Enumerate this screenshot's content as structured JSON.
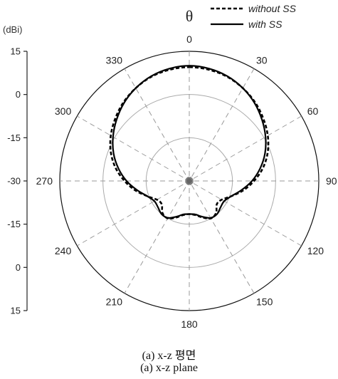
{
  "chart_data": {
    "type": "polar-line",
    "theta_symbol": "θ",
    "r_unit_label": "(dBi)",
    "r_tick_labels": [
      "15",
      "0",
      "-15",
      "-30",
      "-15",
      "0",
      "15"
    ],
    "r_range_dbi": [
      -30,
      15
    ],
    "r_ticks_dbi": [
      -15,
      0,
      15
    ],
    "angle_labels": [
      "0",
      "30",
      "60",
      "90",
      "120",
      "150",
      "180",
      "210",
      "240",
      "270",
      "300",
      "330"
    ],
    "angle_step_deg": 30,
    "grid": true,
    "legend_position": "top-right",
    "series": [
      {
        "name": "without SS",
        "style": "dashed",
        "color": "#000000",
        "angles_deg": [
          0,
          10,
          20,
          30,
          40,
          50,
          60,
          70,
          80,
          90,
          100,
          110,
          120,
          130,
          140,
          150,
          160,
          170,
          180,
          190,
          200,
          210,
          220,
          230,
          240,
          250,
          260,
          270,
          280,
          290,
          300,
          310,
          320,
          330,
          340,
          350
        ],
        "gain_dbi": [
          9.5,
          9.2,
          8.5,
          7.2,
          5.6,
          3.6,
          1.5,
          -1.0,
          -4.0,
          -7.5,
          -11.0,
          -14.5,
          -17.0,
          -17.5,
          -15.5,
          -15.0,
          -16.5,
          -18.0,
          -18.5,
          -18.0,
          -16.5,
          -15.0,
          -15.5,
          -17.5,
          -17.0,
          -14.5,
          -11.0,
          -7.5,
          -4.0,
          -1.0,
          1.5,
          3.6,
          5.6,
          7.2,
          8.5,
          9.2
        ]
      },
      {
        "name": "with SS",
        "style": "solid",
        "color": "#000000",
        "angles_deg": [
          0,
          10,
          20,
          30,
          40,
          50,
          60,
          70,
          80,
          90,
          100,
          110,
          120,
          130,
          140,
          150,
          160,
          170,
          180,
          190,
          200,
          210,
          220,
          230,
          240,
          250,
          260,
          270,
          280,
          290,
          300,
          310,
          320,
          330,
          340,
          350
        ],
        "gain_dbi": [
          10.0,
          9.6,
          8.7,
          7.2,
          5.3,
          3.0,
          0.6,
          -2.0,
          -5.0,
          -8.2,
          -11.6,
          -14.5,
          -16.0,
          -15.8,
          -15.0,
          -15.2,
          -16.8,
          -18.2,
          -18.5,
          -18.2,
          -16.8,
          -15.2,
          -15.0,
          -15.8,
          -16.0,
          -14.5,
          -11.6,
          -8.2,
          -5.0,
          -2.0,
          0.6,
          3.0,
          5.3,
          7.2,
          8.7,
          9.6
        ]
      }
    ]
  },
  "captions": {
    "line1": "(a)  x-z  평면",
    "line2": "(a)  x-z  plane"
  }
}
